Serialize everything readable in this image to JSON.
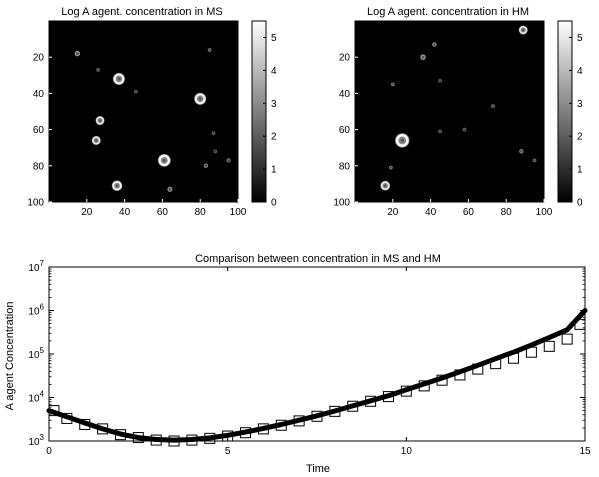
{
  "chart_data": [
    {
      "type": "heatmap",
      "title": "Log A agent. concentration in MS",
      "xlim": [
        0,
        100
      ],
      "ylim": [
        0,
        100
      ],
      "y_reversed": true,
      "xticks": [
        20,
        40,
        60,
        80,
        100
      ],
      "yticks": [
        20,
        40,
        60,
        80,
        100
      ],
      "colorbar": {
        "min": 0,
        "max": 5.5,
        "ticks": [
          0,
          1,
          2,
          3,
          4,
          5
        ]
      },
      "background_value": 0,
      "grid": false,
      "spots": [
        {
          "x": 37,
          "y": 32,
          "value": 5.2,
          "size": 3.2
        },
        {
          "x": 80,
          "y": 43,
          "value": 5.2,
          "size": 3.2
        },
        {
          "x": 27,
          "y": 55,
          "value": 5.0,
          "size": 2.4
        },
        {
          "x": 25,
          "y": 66,
          "value": 5.0,
          "size": 2.4
        },
        {
          "x": 61,
          "y": 77,
          "value": 5.4,
          "size": 3.4
        },
        {
          "x": 36,
          "y": 91,
          "value": 5.2,
          "size": 2.8
        },
        {
          "x": 15,
          "y": 18,
          "value": 3.5,
          "size": 1.5
        },
        {
          "x": 85,
          "y": 16,
          "value": 2.5,
          "size": 1.0
        },
        {
          "x": 26,
          "y": 27,
          "value": 2.2,
          "size": 1.0
        },
        {
          "x": 46,
          "y": 39,
          "value": 2.0,
          "size": 1.0
        },
        {
          "x": 87,
          "y": 62,
          "value": 2.0,
          "size": 1.0
        },
        {
          "x": 88,
          "y": 72,
          "value": 2.0,
          "size": 1.0
        },
        {
          "x": 95,
          "y": 77,
          "value": 2.5,
          "size": 1.2
        },
        {
          "x": 83,
          "y": 80,
          "value": 2.8,
          "size": 1.2
        },
        {
          "x": 64,
          "y": 93,
          "value": 3.2,
          "size": 1.4
        }
      ]
    },
    {
      "type": "heatmap",
      "title": "Log A agent. concentration in HM",
      "xlim": [
        0,
        100
      ],
      "ylim": [
        0,
        100
      ],
      "y_reversed": true,
      "xticks": [
        20,
        40,
        60,
        80,
        100
      ],
      "yticks": [
        20,
        40,
        60,
        80,
        100
      ],
      "colorbar": {
        "min": 0,
        "max": 5.5,
        "ticks": [
          0,
          1,
          2,
          3,
          4,
          5
        ]
      },
      "background_value": 0,
      "grid": false,
      "spots": [
        {
          "x": 89,
          "y": 5,
          "value": 5.0,
          "size": 2.4
        },
        {
          "x": 42,
          "y": 13,
          "value": 3.0,
          "size": 1.2
        },
        {
          "x": 36,
          "y": 20,
          "value": 3.5,
          "size": 1.5
        },
        {
          "x": 45,
          "y": 33,
          "value": 2.0,
          "size": 1.0
        },
        {
          "x": 20,
          "y": 35,
          "value": 2.5,
          "size": 1.0
        },
        {
          "x": 73,
          "y": 47,
          "value": 2.2,
          "size": 1.0
        },
        {
          "x": 45,
          "y": 61,
          "value": 2.0,
          "size": 1.0
        },
        {
          "x": 58,
          "y": 60,
          "value": 2.0,
          "size": 1.0
        },
        {
          "x": 25,
          "y": 66,
          "value": 5.4,
          "size": 3.8
        },
        {
          "x": 88,
          "y": 72,
          "value": 2.8,
          "size": 1.2
        },
        {
          "x": 95,
          "y": 77,
          "value": 2.2,
          "size": 1.0
        },
        {
          "x": 19,
          "y": 81,
          "value": 2.5,
          "size": 1.0
        },
        {
          "x": 16,
          "y": 91,
          "value": 5.0,
          "size": 2.6
        }
      ]
    },
    {
      "type": "line",
      "title": "Comparison between concentration in MS and HM",
      "xlabel": "Time",
      "ylabel": "A agent Concentration",
      "xlim": [
        0,
        15
      ],
      "ylim": [
        1000,
        10000000
      ],
      "yscale": "log",
      "xticks": [
        0,
        5,
        10,
        15
      ],
      "yticks": [
        {
          "value": 1000,
          "base": "10",
          "exp": "3"
        },
        {
          "value": 10000,
          "base": "10",
          "exp": "4"
        },
        {
          "value": 100000,
          "base": "10",
          "exp": "5"
        },
        {
          "value": 1000000,
          "base": "10",
          "exp": "6"
        },
        {
          "value": 10000000,
          "base": "10",
          "exp": "7"
        }
      ],
      "grid": false,
      "series": [
        {
          "style": "thick-line",
          "color": "#000000",
          "x": [
            0,
            0.5,
            1,
            1.5,
            2,
            2.5,
            3,
            3.5,
            4,
            4.5,
            5,
            5.5,
            6,
            6.5,
            7,
            7.5,
            8,
            8.5,
            9,
            9.5,
            10,
            10.5,
            11,
            11.5,
            12,
            12.5,
            13,
            13.5,
            14,
            14.5,
            15
          ],
          "y": [
            5000,
            3600,
            2600,
            1900,
            1450,
            1200,
            1080,
            1050,
            1080,
            1180,
            1350,
            1600,
            1950,
            2400,
            3000,
            3800,
            4900,
            6400,
            8400,
            11000,
            15000,
            20500,
            28000,
            39000,
            55000,
            78000,
            110000,
            160000,
            240000,
            360000,
            1000000
          ]
        },
        {
          "style": "square-markers",
          "color": "#000000",
          "x": [
            0,
            0.5,
            1,
            1.5,
            2,
            2.5,
            3,
            3.5,
            4,
            4.5,
            5,
            5.5,
            6,
            6.5,
            7,
            7.5,
            8,
            8.5,
            9,
            9.5,
            10,
            10.5,
            11,
            11.5,
            12,
            12.5,
            13,
            13.5,
            14,
            14.5,
            15
          ],
          "y": [
            5000,
            3300,
            2400,
            1900,
            1400,
            1200,
            1050,
            1000,
            1050,
            1150,
            1300,
            1550,
            1900,
            2300,
            2900,
            3700,
            4800,
            6300,
            8200,
            10500,
            14000,
            18500,
            25000,
            33000,
            45000,
            60000,
            80000,
            110000,
            150000,
            220000,
            480000
          ]
        }
      ]
    }
  ]
}
